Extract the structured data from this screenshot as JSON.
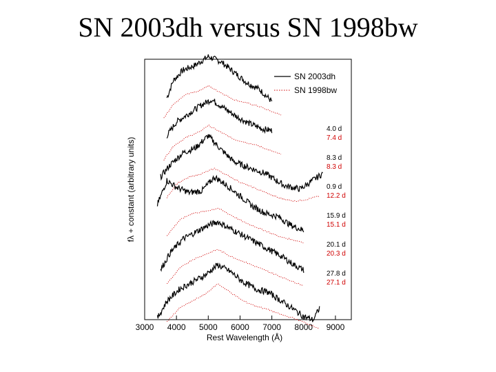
{
  "slide": {
    "title": "SN 2003dh versus SN 1998bw"
  },
  "chart_data": {
    "type": "line",
    "title": "",
    "xlabel": "Rest Wavelength (Å)",
    "ylabel": "fλ + constant (arbitrary units)",
    "xlim": [
      3000,
      9500
    ],
    "xticks": [
      3000,
      4000,
      5000,
      6000,
      7000,
      8000,
      9000
    ],
    "legend": {
      "placement": "top-right",
      "entries": [
        {
          "name": "SN 2003dh",
          "color": "#000000",
          "style": "solid"
        },
        {
          "name": "SN 1998bw",
          "color": "#d00000",
          "style": "dotted"
        }
      ]
    },
    "series": [
      {
        "name": "SN 2003dh",
        "label": "4.0 d",
        "offset": 8.0,
        "points": [
          [
            3700,
            -0.2
          ],
          [
            3900,
            0.3
          ],
          [
            4200,
            0.6
          ],
          [
            4600,
            0.75
          ],
          [
            5000,
            1.0
          ],
          [
            5400,
            0.85
          ],
          [
            5800,
            0.55
          ],
          [
            6200,
            0.25
          ],
          [
            6600,
            0.05
          ],
          [
            7000,
            -0.3
          ]
        ]
      },
      {
        "name": "SN 1998bw",
        "label": "7.4 d",
        "offset": 7.0,
        "points": [
          [
            3600,
            -0.2
          ],
          [
            3900,
            0.2
          ],
          [
            4300,
            0.5
          ],
          [
            4700,
            0.6
          ],
          [
            5000,
            0.75
          ],
          [
            5400,
            0.55
          ],
          [
            5800,
            0.35
          ],
          [
            6200,
            0.25
          ],
          [
            6600,
            0.15
          ],
          [
            7000,
            0.0
          ],
          [
            7300,
            -0.1
          ]
        ]
      },
      {
        "name": "SN 2003dh",
        "label": "8.3 d",
        "offset": 6.0,
        "points": [
          [
            3700,
            -0.1
          ],
          [
            4000,
            0.3
          ],
          [
            4400,
            0.55
          ],
          [
            4800,
            0.8
          ],
          [
            5100,
            0.95
          ],
          [
            5500,
            0.7
          ],
          [
            5900,
            0.45
          ],
          [
            6300,
            0.25
          ],
          [
            6700,
            0.1
          ],
          [
            7000,
            0.05
          ]
        ]
      },
      {
        "name": "SN 1998bw",
        "label": "8.3 d",
        "offset": 5.0,
        "points": [
          [
            3600,
            -0.2
          ],
          [
            3900,
            0.2
          ],
          [
            4300,
            0.45
          ],
          [
            4700,
            0.6
          ],
          [
            5000,
            0.8
          ],
          [
            5400,
            0.6
          ],
          [
            5800,
            0.4
          ],
          [
            6200,
            0.3
          ],
          [
            6600,
            0.2
          ],
          [
            7000,
            0.05
          ],
          [
            7300,
            -0.05
          ]
        ]
      },
      {
        "name": "SN 2003dh",
        "label": "0.9 d",
        "offset": 4.0,
        "points": [
          [
            3500,
            -0.1
          ],
          [
            3800,
            0.25
          ],
          [
            4200,
            0.6
          ],
          [
            4600,
            0.75
          ],
          [
            5000,
            1.1
          ],
          [
            5400,
            0.7
          ],
          [
            5800,
            0.35
          ],
          [
            6200,
            0.2
          ],
          [
            6800,
            0.0
          ],
          [
            7400,
            -0.35
          ],
          [
            7900,
            -0.45
          ],
          [
            8200,
            -0.25
          ],
          [
            8600,
            0.0
          ]
        ]
      },
      {
        "name": "SN 1998bw",
        "label": "12.2 d",
        "offset": 3.0,
        "points": [
          [
            3700,
            -0.1
          ],
          [
            4000,
            0.3
          ],
          [
            4400,
            0.5
          ],
          [
            4800,
            0.6
          ],
          [
            5200,
            0.75
          ],
          [
            5600,
            0.55
          ],
          [
            6000,
            0.35
          ],
          [
            6400,
            0.2
          ],
          [
            6800,
            0.05
          ],
          [
            7200,
            -0.1
          ],
          [
            7700,
            -0.2
          ],
          [
            8100,
            -0.15
          ],
          [
            8500,
            -0.05
          ]
        ]
      },
      {
        "name": "SN 2003dh",
        "label": "15.9 d",
        "offset": 2.0,
        "points": [
          [
            3400,
            0.3
          ],
          [
            3700,
            1.0
          ],
          [
            4000,
            0.8
          ],
          [
            4400,
            0.65
          ],
          [
            4800,
            0.7
          ],
          [
            5200,
            1.1
          ],
          [
            5600,
            0.85
          ],
          [
            6000,
            0.55
          ],
          [
            6400,
            0.25
          ],
          [
            6800,
            0.05
          ],
          [
            7200,
            -0.05
          ],
          [
            7600,
            -0.3
          ],
          [
            8000,
            -0.45
          ]
        ]
      },
      {
        "name": "SN 1998bw",
        "label": "15.1 d",
        "offset": 1.0,
        "points": [
          [
            3700,
            0.0
          ],
          [
            4100,
            0.45
          ],
          [
            4500,
            0.65
          ],
          [
            4900,
            0.7
          ],
          [
            5300,
            0.8
          ],
          [
            5700,
            0.6
          ],
          [
            6100,
            0.4
          ],
          [
            6500,
            0.25
          ],
          [
            6900,
            0.1
          ],
          [
            7300,
            -0.05
          ],
          [
            7800,
            -0.15
          ],
          [
            8000,
            -0.2
          ]
        ]
      },
      {
        "name": "SN 2003dh",
        "label": "20.1 d",
        "offset": 0.0,
        "points": [
          [
            3500,
            -0.4
          ],
          [
            3800,
            0.1
          ],
          [
            4200,
            0.5
          ],
          [
            4600,
            0.7
          ],
          [
            5000,
            0.9
          ],
          [
            5300,
            1.0
          ],
          [
            5700,
            0.8
          ],
          [
            6100,
            0.6
          ],
          [
            6500,
            0.4
          ],
          [
            6900,
            0.2
          ],
          [
            7300,
            0.0
          ],
          [
            7700,
            -0.25
          ],
          [
            8000,
            -0.4
          ]
        ]
      },
      {
        "name": "SN 1998bw",
        "label": "20.3 d",
        "offset": -1.0,
        "points": [
          [
            3700,
            -0.2
          ],
          [
            4100,
            0.25
          ],
          [
            4500,
            0.5
          ],
          [
            4900,
            0.65
          ],
          [
            5300,
            0.8
          ],
          [
            5700,
            0.6
          ],
          [
            6100,
            0.45
          ],
          [
            6500,
            0.3
          ],
          [
            6900,
            0.15
          ],
          [
            7300,
            0.0
          ],
          [
            7700,
            -0.15
          ],
          [
            8000,
            -0.25
          ]
        ]
      },
      {
        "name": "SN 2003dh",
        "label": "27.8 d",
        "offset": -2.0,
        "points": [
          [
            3400,
            -0.6
          ],
          [
            3700,
            -0.1
          ],
          [
            4100,
            0.25
          ],
          [
            4500,
            0.45
          ],
          [
            4900,
            0.65
          ],
          [
            5300,
            0.95
          ],
          [
            5700,
            0.75
          ],
          [
            6100,
            0.45
          ],
          [
            6500,
            0.25
          ],
          [
            6900,
            0.15
          ],
          [
            7300,
            -0.1
          ],
          [
            7700,
            -0.35
          ],
          [
            8000,
            -0.55
          ],
          [
            8300,
            -0.65
          ],
          [
            8500,
            -0.3
          ]
        ]
      },
      {
        "name": "SN 1998bw",
        "label": "27.1 d",
        "offset": -3.0,
        "points": [
          [
            3700,
            -0.1
          ],
          [
            4100,
            0.3
          ],
          [
            4500,
            0.5
          ],
          [
            4900,
            0.7
          ],
          [
            5300,
            1.0
          ],
          [
            5700,
            0.75
          ],
          [
            6100,
            0.5
          ],
          [
            6500,
            0.35
          ],
          [
            6900,
            0.25
          ],
          [
            7300,
            0.1
          ],
          [
            7700,
            0.0
          ],
          [
            8100,
            -0.15
          ],
          [
            8500,
            -0.3
          ]
        ]
      }
    ]
  }
}
